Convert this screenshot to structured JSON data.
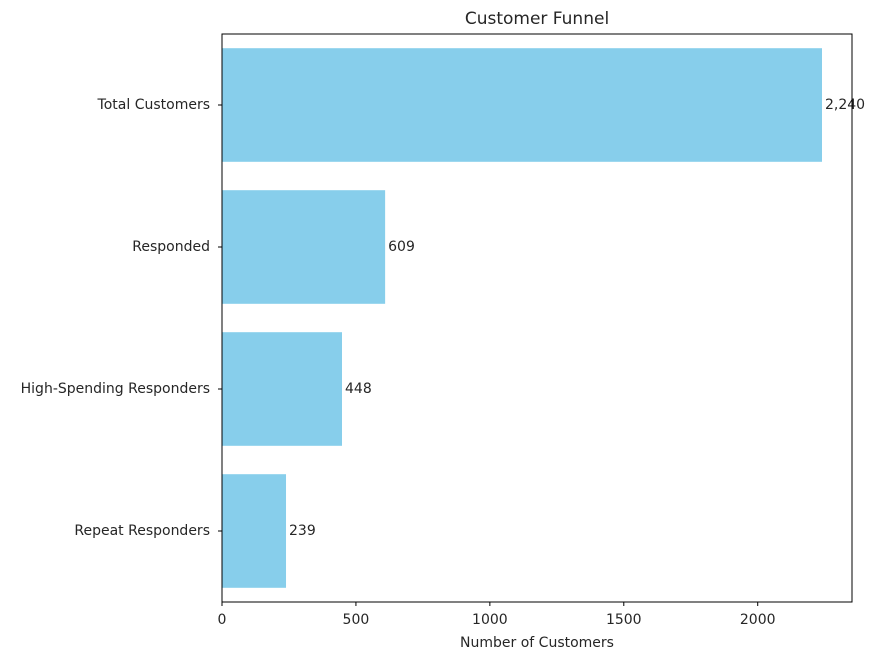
{
  "chart_data": {
    "type": "bar",
    "orientation": "horizontal",
    "title": "Customer Funnel",
    "xlabel": "Number of Customers",
    "ylabel": "",
    "categories": [
      "Total Customers",
      "Responded",
      "High-Spending Responders",
      "Repeat Responders"
    ],
    "values": [
      2240,
      609,
      448,
      239
    ],
    "data_labels": [
      "2,240",
      "609",
      "448",
      "239"
    ],
    "xlim": [
      0,
      2352
    ],
    "xticks": [
      0,
      500,
      1000,
      1500,
      2000
    ],
    "xtick_labels": [
      "0",
      "500",
      "1000",
      "1500",
      "2000"
    ],
    "bar_color": "#87ceeb",
    "grid": false,
    "legend": "none"
  }
}
